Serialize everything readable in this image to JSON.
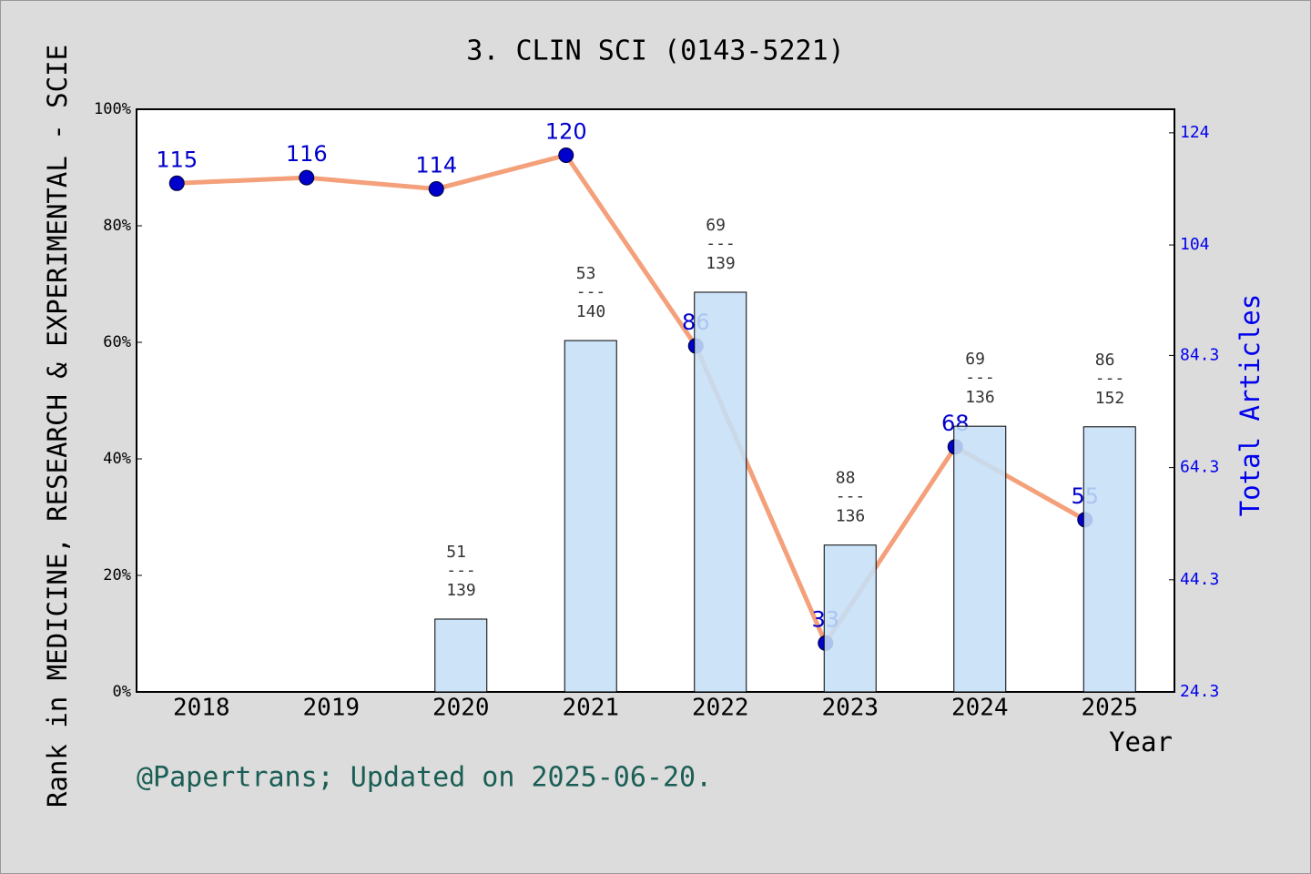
{
  "chart_data": {
    "type": "bar-line",
    "title": "3. CLIN SCI (0143-5221)",
    "y_label": "Rank in MEDICINE, RESEARCH & EXPERIMENTAL - SCIE",
    "y2_label": "Total Articles",
    "x_label": "Year",
    "footer": "@Papertrans; Updated on 2025-06-20.",
    "categories": [
      "2018",
      "2019",
      "2020",
      "2021",
      "2022",
      "2023",
      "2024",
      "2025"
    ],
    "ylim": [
      0,
      100
    ],
    "yticks": [
      {
        "value": 0,
        "label": "0%"
      },
      {
        "value": 20,
        "label": "20%"
      },
      {
        "value": 40,
        "label": "40%"
      },
      {
        "value": 60,
        "label": "60%"
      },
      {
        "value": 80,
        "label": "80%"
      },
      {
        "value": 100,
        "label": "100%"
      }
    ],
    "y2lim": [
      24.3,
      128.2
    ],
    "y2ticks": [
      24.3,
      44.3,
      64.3,
      84.3,
      104,
      124
    ],
    "bar_label_separator": "---",
    "series": [
      {
        "name": "Rank",
        "type": "bar",
        "color": "#c5dff7",
        "values": [
          null,
          null,
          12.5,
          60.3,
          68.6,
          25.2,
          45.6,
          45.5
        ],
        "ranks": [
          null,
          null,
          51,
          53,
          69,
          88,
          69,
          86
        ],
        "totals": [
          null,
          null,
          139,
          140,
          139,
          136,
          136,
          152
        ]
      },
      {
        "name": "Total Articles",
        "type": "line",
        "axis": "y2",
        "color": "#f4a07a",
        "marker_color": "#0000cc",
        "values": [
          115,
          116,
          114,
          120,
          86,
          33,
          68,
          55
        ]
      }
    ]
  }
}
